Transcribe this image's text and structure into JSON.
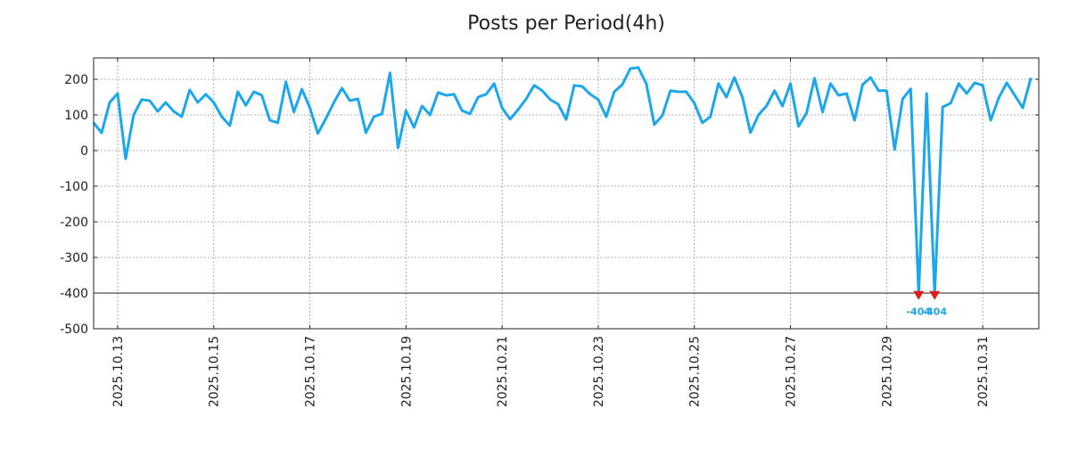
{
  "chart_data": {
    "type": "line",
    "title": "Posts per Period(4h)",
    "xlabel": "",
    "ylabel": "",
    "ylim": [
      -500,
      260
    ],
    "yticks": [
      200,
      100,
      0,
      -100,
      -200,
      -300,
      -400,
      -500
    ],
    "ytick_labels": [
      "200",
      "100",
      "0",
      "-100",
      "-200",
      "-300",
      "-400",
      "-500"
    ],
    "x_start": "2025-10-12 12:00",
    "x_end": "2025-11-01 04:00",
    "xticks": [
      "2025-10-13",
      "2025-10-15",
      "2025-10-17",
      "2025-10-19",
      "2025-10-21",
      "2025-10-23",
      "2025-10-25",
      "2025-10-27",
      "2025-10-29",
      "2025-10-31"
    ],
    "xtick_labels": [
      "2025.10.13",
      "2025.10.15",
      "2025.10.17",
      "2025.10.19",
      "2025.10.21",
      "2025.10.23",
      "2025.10.25",
      "2025.10.27",
      "2025.10.29",
      "2025.10.31"
    ],
    "grid": true,
    "reference_line": -400,
    "series": [
      {
        "color": "#1aa7ec",
        "points": [
          [
            "2025-10-12 12:00",
            78
          ],
          [
            "2025-10-12 16:00",
            50
          ],
          [
            "2025-10-12 20:00",
            135
          ],
          [
            "2025-10-13 00:00",
            160
          ],
          [
            "2025-10-13 04:00",
            -23
          ],
          [
            "2025-10-13 08:00",
            100
          ],
          [
            "2025-10-13 12:00",
            143
          ],
          [
            "2025-10-13 16:00",
            140
          ],
          [
            "2025-10-13 20:00",
            110
          ],
          [
            "2025-10-14 00:00",
            135
          ],
          [
            "2025-10-14 04:00",
            110
          ],
          [
            "2025-10-14 08:00",
            95
          ],
          [
            "2025-10-14 12:00",
            170
          ],
          [
            "2025-10-14 16:00",
            135
          ],
          [
            "2025-10-14 20:00",
            158
          ],
          [
            "2025-10-15 00:00",
            135
          ],
          [
            "2025-10-15 04:00",
            95
          ],
          [
            "2025-10-15 08:00",
            70
          ],
          [
            "2025-10-15 12:00",
            165
          ],
          [
            "2025-10-15 16:00",
            127
          ],
          [
            "2025-10-15 20:00",
            165
          ],
          [
            "2025-10-16 00:00",
            155
          ],
          [
            "2025-10-16 04:00",
            85
          ],
          [
            "2025-10-16 08:00",
            78
          ],
          [
            "2025-10-16 12:00",
            193
          ],
          [
            "2025-10-16 16:00",
            108
          ],
          [
            "2025-10-16 20:00",
            172
          ],
          [
            "2025-10-17 00:00",
            120
          ],
          [
            "2025-10-17 04:00",
            48
          ],
          [
            "2025-10-17 08:00",
            90
          ],
          [
            "2025-10-17 12:00",
            135
          ],
          [
            "2025-10-17 16:00",
            175
          ],
          [
            "2025-10-17 20:00",
            140
          ],
          [
            "2025-10-18 00:00",
            145
          ],
          [
            "2025-10-18 04:00",
            50
          ],
          [
            "2025-10-18 08:00",
            95
          ],
          [
            "2025-10-18 12:00",
            103
          ],
          [
            "2025-10-18 16:00",
            218
          ],
          [
            "2025-10-18 20:00",
            8
          ],
          [
            "2025-10-19 00:00",
            112
          ],
          [
            "2025-10-19 04:00",
            65
          ],
          [
            "2025-10-19 08:00",
            125
          ],
          [
            "2025-10-19 12:00",
            100
          ],
          [
            "2025-10-19 16:00",
            163
          ],
          [
            "2025-10-19 20:00",
            155
          ],
          [
            "2025-10-20 00:00",
            158
          ],
          [
            "2025-10-20 04:00",
            112
          ],
          [
            "2025-10-20 08:00",
            103
          ],
          [
            "2025-10-20 12:00",
            150
          ],
          [
            "2025-10-20 16:00",
            158
          ],
          [
            "2025-10-20 20:00",
            188
          ],
          [
            "2025-10-21 00:00",
            120
          ],
          [
            "2025-10-21 04:00",
            88
          ],
          [
            "2025-10-21 08:00",
            115
          ],
          [
            "2025-10-21 12:00",
            145
          ],
          [
            "2025-10-21 16:00",
            183
          ],
          [
            "2025-10-21 20:00",
            168
          ],
          [
            "2025-10-22 00:00",
            143
          ],
          [
            "2025-10-22 04:00",
            130
          ],
          [
            "2025-10-22 08:00",
            87
          ],
          [
            "2025-10-22 12:00",
            183
          ],
          [
            "2025-10-22 16:00",
            180
          ],
          [
            "2025-10-22 20:00",
            158
          ],
          [
            "2025-10-23 00:00",
            143
          ],
          [
            "2025-10-23 04:00",
            95
          ],
          [
            "2025-10-23 08:00",
            165
          ],
          [
            "2025-10-23 12:00",
            185
          ],
          [
            "2025-10-23 16:00",
            230
          ],
          [
            "2025-10-23 20:00",
            233
          ],
          [
            "2025-10-24 00:00",
            188
          ],
          [
            "2025-10-24 04:00",
            73
          ],
          [
            "2025-10-24 08:00",
            98
          ],
          [
            "2025-10-24 12:00",
            168
          ],
          [
            "2025-10-24 16:00",
            165
          ],
          [
            "2025-10-24 20:00",
            165
          ],
          [
            "2025-10-25 00:00",
            133
          ],
          [
            "2025-10-25 04:00",
            78
          ],
          [
            "2025-10-25 08:00",
            95
          ],
          [
            "2025-10-25 12:00",
            188
          ],
          [
            "2025-10-25 16:00",
            150
          ],
          [
            "2025-10-25 20:00",
            205
          ],
          [
            "2025-10-26 00:00",
            150
          ],
          [
            "2025-10-26 04:00",
            50
          ],
          [
            "2025-10-26 08:00",
            100
          ],
          [
            "2025-10-26 12:00",
            125
          ],
          [
            "2025-10-26 16:00",
            168
          ],
          [
            "2025-10-26 20:00",
            125
          ],
          [
            "2025-10-27 00:00",
            188
          ],
          [
            "2025-10-27 04:00",
            68
          ],
          [
            "2025-10-27 08:00",
            105
          ],
          [
            "2025-10-27 12:00",
            203
          ],
          [
            "2025-10-27 16:00",
            108
          ],
          [
            "2025-10-27 20:00",
            188
          ],
          [
            "2025-10-28 00:00",
            155
          ],
          [
            "2025-10-28 04:00",
            160
          ],
          [
            "2025-10-28 08:00",
            85
          ],
          [
            "2025-10-28 12:00",
            185
          ],
          [
            "2025-10-28 16:00",
            205
          ],
          [
            "2025-10-28 20:00",
            168
          ],
          [
            "2025-10-29 00:00",
            168
          ],
          [
            "2025-10-29 04:00",
            3
          ],
          [
            "2025-10-29 08:00",
            145
          ],
          [
            "2025-10-29 12:00",
            173
          ],
          [
            "2025-10-29 16:00",
            -404
          ],
          [
            "2025-10-29 20:00",
            160
          ],
          [
            "2025-10-30 00:00",
            -404
          ],
          [
            "2025-10-30 04:00",
            122
          ],
          [
            "2025-10-30 08:00",
            133
          ],
          [
            "2025-10-30 12:00",
            188
          ],
          [
            "2025-10-30 16:00",
            160
          ],
          [
            "2025-10-30 20:00",
            190
          ],
          [
            "2025-10-31 00:00",
            183
          ],
          [
            "2025-10-31 04:00",
            85
          ],
          [
            "2025-10-31 08:00",
            148
          ],
          [
            "2025-10-31 12:00",
            190
          ],
          [
            "2025-10-31 16:00",
            155
          ],
          [
            "2025-10-31 20:00",
            120
          ],
          [
            "2025-11-01 00:00",
            203
          ]
        ]
      }
    ],
    "annotations": [
      {
        "x": "2025-10-29 16:00",
        "y": -404,
        "text": "-404",
        "marker_color": "#e31a1c",
        "text_color": "#1aa7ec"
      },
      {
        "x": "2025-10-30 00:00",
        "y": -404,
        "text": "-404",
        "marker_color": "#e31a1c",
        "text_color": "#1aa7ec"
      }
    ]
  }
}
